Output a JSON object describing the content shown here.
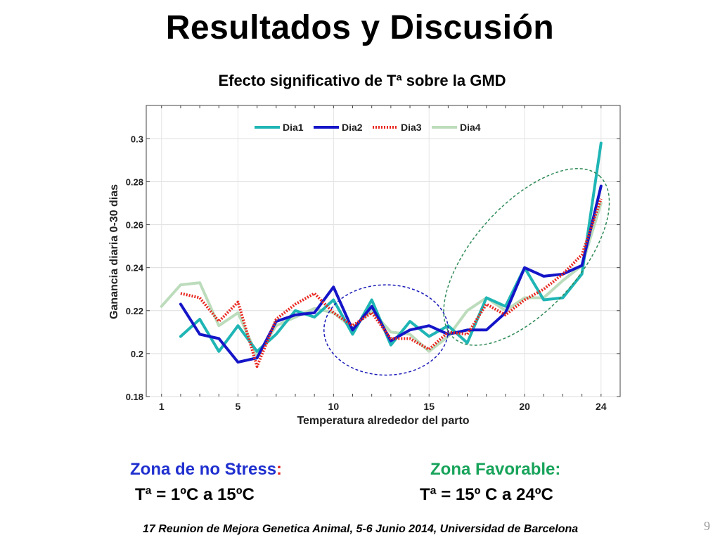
{
  "slide": {
    "title": "Resultados y Discusión",
    "subtitle": "Efecto  significativo de Tª sobre la GMD",
    "zone_nostress_title": "Zona de no Stress",
    "zone_nostress_colon": ":",
    "zone_nostress_range": "Tª = 1ºC a 15ºC",
    "zone_favorable_title": "Zona Favorable:",
    "zone_favorable_range": "Tª = 15º C a 24ºC",
    "footer": "17 Reunion de Mejora Genetica Animal, 5-6 Junio 2014, Universidad de Barcelona",
    "page_number": "9"
  },
  "chart_data": {
    "type": "line",
    "xlabel": "Temperatura alrededor del parto",
    "ylabel": "Ganancia diaria 0-30 dias",
    "xlim": [
      0.2,
      25
    ],
    "ylim": [
      0.18,
      0.3155
    ],
    "x_ticks": [
      1,
      5,
      10,
      15,
      20,
      24
    ],
    "y_ticks": [
      0.18,
      0.2,
      0.22,
      0.24,
      0.26,
      0.28,
      0.3
    ],
    "y_tick_labels": [
      "0.18",
      "0.2",
      "0.22",
      "0.24",
      "0.26",
      "0.28",
      "0.3"
    ],
    "grid": true,
    "legend_position": "top",
    "series": [
      {
        "name": "Dia1",
        "color": "#1fb5b5",
        "style": "solid",
        "x": [
          2,
          3,
          4,
          5,
          6,
          7,
          8,
          9,
          10,
          11,
          12,
          13,
          14,
          15,
          16,
          17,
          18,
          19,
          20,
          21,
          22,
          23,
          24
        ],
        "y": [
          0.208,
          0.216,
          0.201,
          0.213,
          0.201,
          0.209,
          0.22,
          0.217,
          0.225,
          0.209,
          0.225,
          0.204,
          0.215,
          0.208,
          0.213,
          0.205,
          0.226,
          0.222,
          0.24,
          0.225,
          0.226,
          0.237,
          0.298
        ]
      },
      {
        "name": "Dia2",
        "color": "#1515c8",
        "style": "solid",
        "x": [
          2,
          3,
          4,
          5,
          6,
          7,
          8,
          9,
          10,
          11,
          12,
          13,
          14,
          15,
          16,
          17,
          18,
          19,
          20,
          21,
          22,
          23,
          24
        ],
        "y": [
          0.223,
          0.209,
          0.207,
          0.196,
          0.198,
          0.215,
          0.218,
          0.219,
          0.231,
          0.211,
          0.222,
          0.206,
          0.211,
          0.213,
          0.209,
          0.211,
          0.211,
          0.219,
          0.24,
          0.236,
          0.237,
          0.241,
          0.278
        ]
      },
      {
        "name": "Dia3",
        "color": "#e8271f",
        "style": "dotted",
        "x": [
          2,
          3,
          4,
          5,
          6,
          7,
          8,
          9,
          10,
          11,
          12,
          13,
          14,
          15,
          16,
          17,
          18,
          19,
          20,
          21,
          22,
          23,
          24
        ],
        "y": [
          0.228,
          0.226,
          0.215,
          0.224,
          0.194,
          0.216,
          0.223,
          0.228,
          0.219,
          0.213,
          0.219,
          0.207,
          0.207,
          0.202,
          0.21,
          0.209,
          0.223,
          0.218,
          0.225,
          0.23,
          0.237,
          0.246,
          0.272
        ]
      },
      {
        "name": "Dia4",
        "color": "#bcdcbc",
        "style": "solid",
        "x": [
          1,
          2,
          3,
          4,
          5,
          6,
          7,
          8,
          9,
          10,
          11,
          12,
          13,
          14,
          15,
          16,
          17,
          18,
          19,
          20,
          21,
          22,
          23,
          24
        ],
        "y": [
          0.222,
          0.232,
          0.233,
          0.213,
          0.219,
          0.199,
          0.213,
          0.217,
          0.221,
          0.219,
          0.212,
          0.22,
          0.21,
          0.209,
          0.201,
          0.208,
          0.22,
          0.226,
          0.22,
          0.226,
          0.226,
          0.234,
          0.241,
          0.27
        ]
      }
    ],
    "annotations": [
      {
        "shape": "ellipse",
        "color": "#1a1ab8",
        "x_range": [
          9.5,
          16.0
        ],
        "y_range": [
          0.19,
          0.232
        ]
      },
      {
        "shape": "ellipse",
        "color": "#2e8b57",
        "x_range": [
          15.5,
          24.7
        ],
        "y_range": [
          0.205,
          0.285
        ]
      }
    ]
  }
}
